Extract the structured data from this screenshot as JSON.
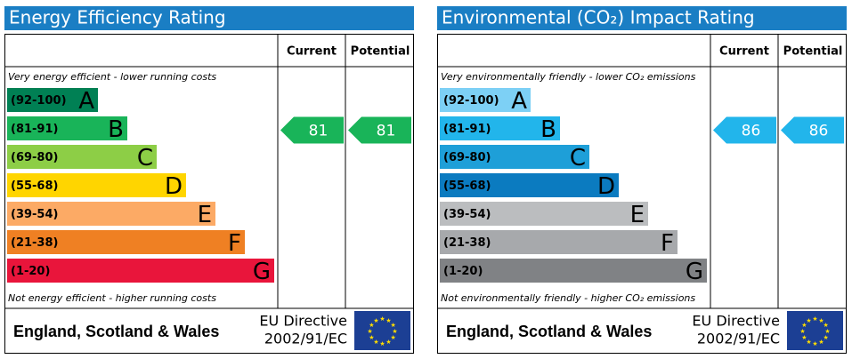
{
  "chart_data": [
    {
      "type": "epc",
      "title": "Energy Efficiency Rating",
      "columns": [
        "Current",
        "Potential"
      ],
      "top_note": "Very energy efficient - lower running costs",
      "bottom_note": "Not energy efficient - higher running costs",
      "bands": [
        {
          "range": "(92-100)",
          "letter": "A",
          "color": "#008054"
        },
        {
          "range": "(81-91)",
          "letter": "B",
          "color": "#19b459"
        },
        {
          "range": "(69-80)",
          "letter": "C",
          "color": "#8dce46"
        },
        {
          "range": "(55-68)",
          "letter": "D",
          "color": "#ffd500"
        },
        {
          "range": "(39-54)",
          "letter": "E",
          "color": "#fcaa65"
        },
        {
          "range": "(21-38)",
          "letter": "F",
          "color": "#ef8023"
        },
        {
          "range": "(1-20)",
          "letter": "G",
          "color": "#e9153b"
        }
      ],
      "current": 81,
      "potential": 81,
      "footer": "England, Scotland & Wales",
      "directive": [
        "EU Directive",
        "2002/91/EC"
      ]
    },
    {
      "type": "epc",
      "title": "Environmental (CO₂) Impact Rating",
      "columns": [
        "Current",
        "Potential"
      ],
      "top_note": "Very environmentally friendly - lower CO₂ emissions",
      "bottom_note": "Not environmentally friendly - higher CO₂ emissions",
      "bands": [
        {
          "range": "(92-100)",
          "letter": "A",
          "color": "#7dd0f5"
        },
        {
          "range": "(81-91)",
          "letter": "B",
          "color": "#22b5eb"
        },
        {
          "range": "(69-80)",
          "letter": "C",
          "color": "#1e9fd8"
        },
        {
          "range": "(55-68)",
          "letter": "D",
          "color": "#0b7bc0"
        },
        {
          "range": "(39-54)",
          "letter": "E",
          "color": "#bbbdbf"
        },
        {
          "range": "(21-38)",
          "letter": "F",
          "color": "#a7a9ac"
        },
        {
          "range": "(1-20)",
          "letter": "G",
          "color": "#808285"
        }
      ],
      "current": 86,
      "potential": 86,
      "footer": "England, Scotland & Wales",
      "directive": [
        "EU Directive",
        "2002/91/EC"
      ]
    }
  ]
}
